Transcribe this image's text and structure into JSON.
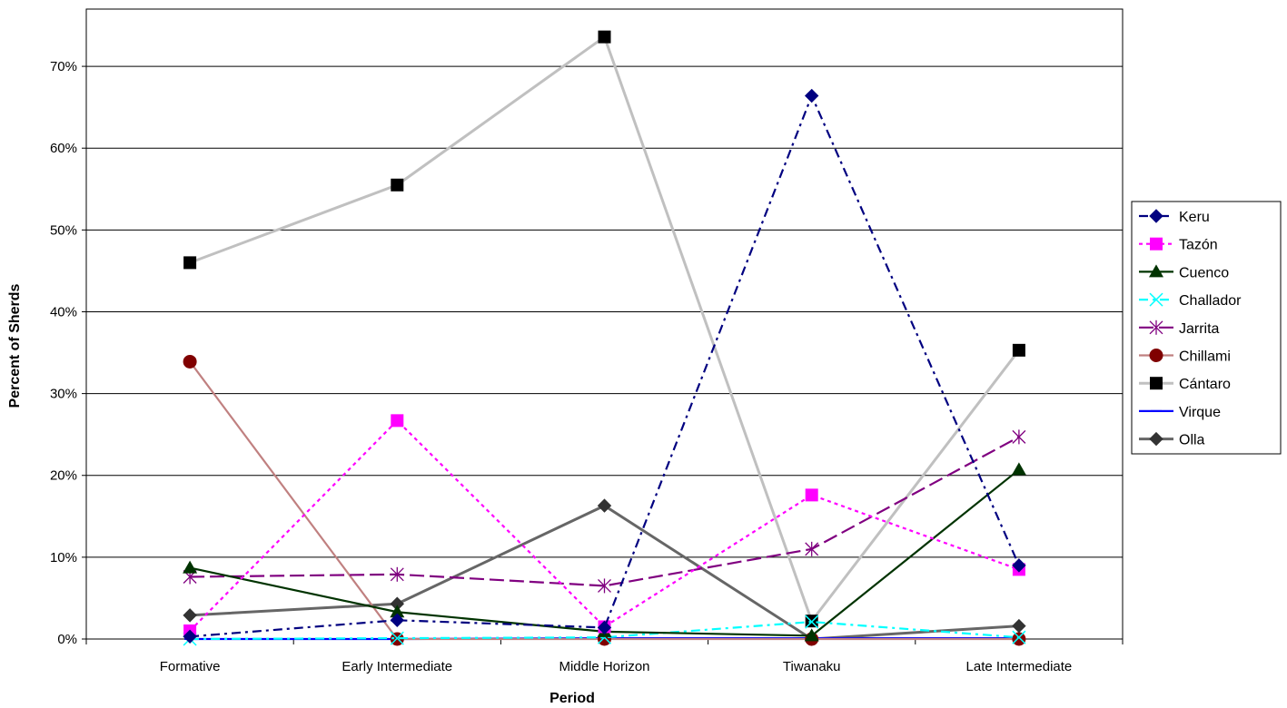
{
  "chart_data": {
    "type": "line",
    "title": "",
    "xlabel": "Period",
    "ylabel": "Percent of Sherds",
    "categories": [
      "Formative",
      "Early Intermediate",
      "Middle Horizon",
      "Tiwanaku",
      "Late Intermediate"
    ],
    "ylim": [
      0,
      77
    ],
    "yticks": [
      0,
      10,
      20,
      30,
      40,
      50,
      60,
      70
    ],
    "ytick_labels": [
      "0%",
      "10%",
      "20%",
      "30%",
      "40%",
      "50%",
      "60%",
      "70%"
    ],
    "grid": "horizontal",
    "legend_position": "right",
    "series": [
      {
        "name": "Keru",
        "values": [
          0.3,
          2.3,
          1.4,
          66.4,
          9.0
        ],
        "color": "#000080",
        "dash": "dashdot",
        "marker": "diamond"
      },
      {
        "name": "Tazón",
        "values": [
          1.0,
          26.7,
          1.5,
          17.6,
          8.5
        ],
        "color": "#ff00ff",
        "dash": "dot",
        "marker": "square"
      },
      {
        "name": "Cuenco",
        "values": [
          8.7,
          3.3,
          0.9,
          0.4,
          20.7
        ],
        "color": "#003300",
        "dash": "solid",
        "marker": "triangle"
      },
      {
        "name": "Challador",
        "values": [
          0.0,
          0.1,
          0.2,
          2.1,
          0.2
        ],
        "color": "#00ffff",
        "dash": "dashdot",
        "marker": "x"
      },
      {
        "name": "Jarrita",
        "values": [
          7.6,
          7.9,
          6.5,
          11.0,
          24.7
        ],
        "color": "#800080",
        "dash": "longdash",
        "marker": "star"
      },
      {
        "name": "Chillami",
        "values": [
          33.9,
          0.0,
          0.0,
          0.0,
          0.0
        ],
        "color": "#c08080",
        "dash": "solid",
        "marker": "circle"
      },
      {
        "name": "Cántaro",
        "values": [
          46.0,
          55.5,
          73.6,
          2.2,
          35.3
        ],
        "color": "#c0c0c0",
        "dash": "solid",
        "marker": "square-black"
      },
      {
        "name": "Virque",
        "values": [
          0.0,
          0.0,
          0.1,
          0.1,
          0.1
        ],
        "color": "#0000ff",
        "dash": "solid",
        "marker": "dash"
      },
      {
        "name": "Olla",
        "values": [
          2.9,
          4.3,
          16.3,
          0.0,
          1.6
        ],
        "color": "#666666",
        "dash": "solid",
        "marker": "diamond-dark"
      }
    ]
  }
}
